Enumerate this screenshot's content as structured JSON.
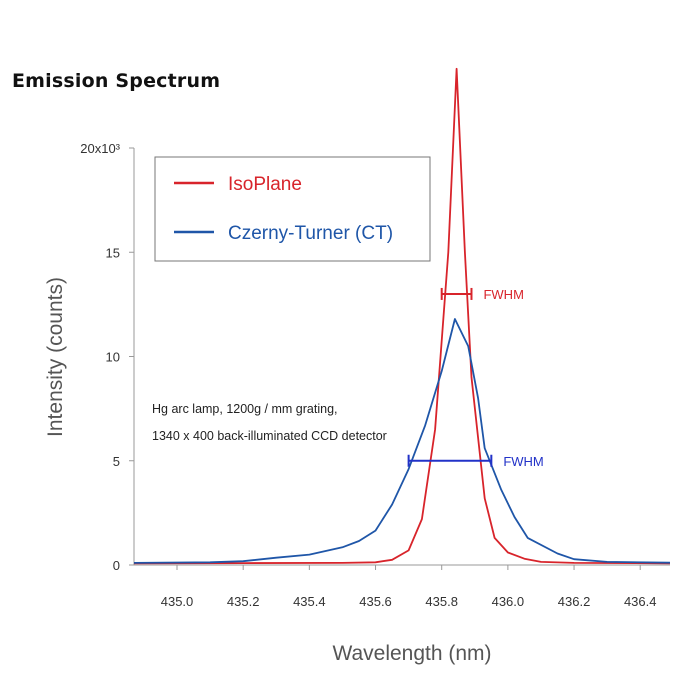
{
  "page_title": "Emission Spectrum",
  "chart_data": {
    "type": "line",
    "title": "Emission Spectrum",
    "xlabel": "Wavelength (nm)",
    "ylabel": "Intensity (counts)",
    "xlim": [
      434.87,
      436.49
    ],
    "ylim": [
      0,
      20000
    ],
    "x_ticks": [
      435.0,
      435.2,
      435.4,
      435.6,
      435.8,
      436.0,
      436.2,
      436.4
    ],
    "x_tick_labels": [
      "435.0",
      "435.2",
      "435.4",
      "435.6",
      "435.8",
      "436.0",
      "436.2",
      "436.4"
    ],
    "y_ticks": [
      0,
      5000,
      10000,
      15000,
      20000
    ],
    "y_tick_labels": [
      "0",
      "5",
      "10",
      "15",
      "20x10³"
    ],
    "grid": false,
    "legend_position": "top-left",
    "series": [
      {
        "name": "IsoPlane",
        "color": "#d8242b",
        "points": [
          [
            434.87,
            80
          ],
          [
            435.2,
            90
          ],
          [
            435.5,
            100
          ],
          [
            435.6,
            130
          ],
          [
            435.65,
            250
          ],
          [
            435.7,
            700
          ],
          [
            435.74,
            2200
          ],
          [
            435.78,
            6500
          ],
          [
            435.82,
            15000
          ],
          [
            435.845,
            23800
          ],
          [
            435.87,
            15000
          ],
          [
            435.89,
            9000
          ],
          [
            435.93,
            3200
          ],
          [
            435.96,
            1300
          ],
          [
            436.0,
            600
          ],
          [
            436.05,
            300
          ],
          [
            436.1,
            150
          ],
          [
            436.2,
            100
          ],
          [
            436.49,
            80
          ]
        ]
      },
      {
        "name": "Czerny-Turner (CT)",
        "color": "#1f56a8",
        "points": [
          [
            434.87,
            100
          ],
          [
            435.1,
            130
          ],
          [
            435.2,
            180
          ],
          [
            435.3,
            350
          ],
          [
            435.4,
            500
          ],
          [
            435.5,
            850
          ],
          [
            435.55,
            1150
          ],
          [
            435.6,
            1650
          ],
          [
            435.65,
            2900
          ],
          [
            435.7,
            4600
          ],
          [
            435.75,
            6700
          ],
          [
            435.8,
            9300
          ],
          [
            435.84,
            11800
          ],
          [
            435.88,
            10500
          ],
          [
            435.91,
            8000
          ],
          [
            435.93,
            5600
          ],
          [
            435.98,
            3600
          ],
          [
            436.02,
            2300
          ],
          [
            436.06,
            1300
          ],
          [
            436.15,
            550
          ],
          [
            436.2,
            280
          ],
          [
            436.3,
            150
          ],
          [
            436.49,
            110
          ]
        ]
      }
    ],
    "annotations": {
      "note_line1": "Hg arc lamp, 1200g / mm grating,",
      "note_line2": "1340 x 400 back-illuminated CCD detector",
      "fwhm_iso": {
        "label": "FWHM",
        "x_start": 435.8,
        "x_end": 435.89,
        "y": 13000,
        "color": "#d8242b"
      },
      "fwhm_ct": {
        "label": "FWHM",
        "x_start": 435.7,
        "x_end": 435.95,
        "y": 5000,
        "color": "#2232c8"
      }
    }
  }
}
